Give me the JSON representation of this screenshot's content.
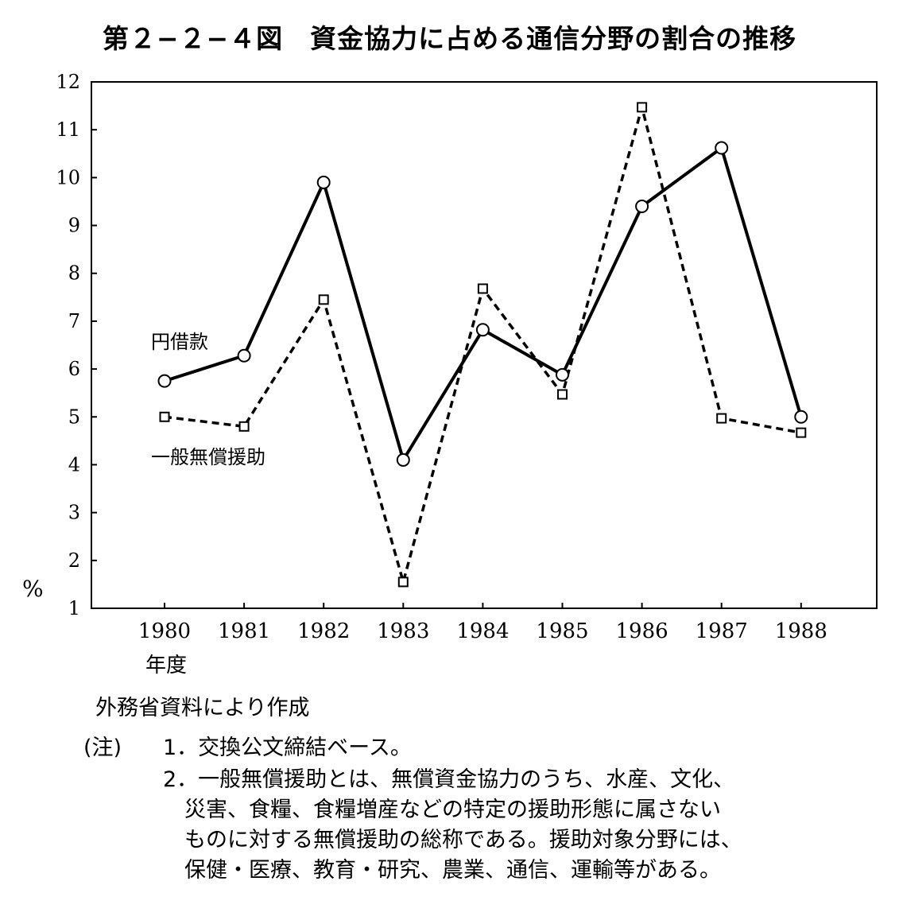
{
  "chart_data": {
    "type": "line",
    "title": "第２−２−４図　資金協力に占める通信分野の割合の推移",
    "x": [
      "1980",
      "1981",
      "1982",
      "1983",
      "1984",
      "1985",
      "1986",
      "1987",
      "1988"
    ],
    "xlabel": "年度",
    "ylabel": "%",
    "ylim": [
      1,
      12
    ],
    "yticks": [
      "1",
      "2",
      "3",
      "4",
      "5",
      "6",
      "7",
      "8",
      "9",
      "10",
      "11",
      "12"
    ],
    "grid": false,
    "series": [
      {
        "name": "円借款",
        "style": "solid",
        "marker": "circle",
        "values": [
          5.75,
          6.28,
          9.9,
          4.1,
          6.82,
          5.88,
          9.4,
          10.62,
          5.0
        ]
      },
      {
        "name": "一般無償援助",
        "style": "dashed",
        "marker": "square",
        "values": [
          5.0,
          4.8,
          7.45,
          1.55,
          7.68,
          5.47,
          11.47,
          4.97,
          4.67
        ]
      }
    ]
  },
  "source_note": "外務省資料により作成",
  "notes": {
    "label": "(注)",
    "items": [
      {
        "lines": [
          "1．交換公文締結ベース。"
        ]
      },
      {
        "lines": [
          "2．一般無償援助とは、無償資金協力のうち、水産、文化、",
          "災害、食糧、食糧増産などの特定の援助形態に属さない",
          "ものに対する無償援助の総称である。援助対象分野には、",
          "保健・医療、教育・研究、農業、通信、運輸等がある。"
        ]
      }
    ]
  },
  "colors": {
    "ink": "#000000",
    "background": "#ffffff"
  }
}
